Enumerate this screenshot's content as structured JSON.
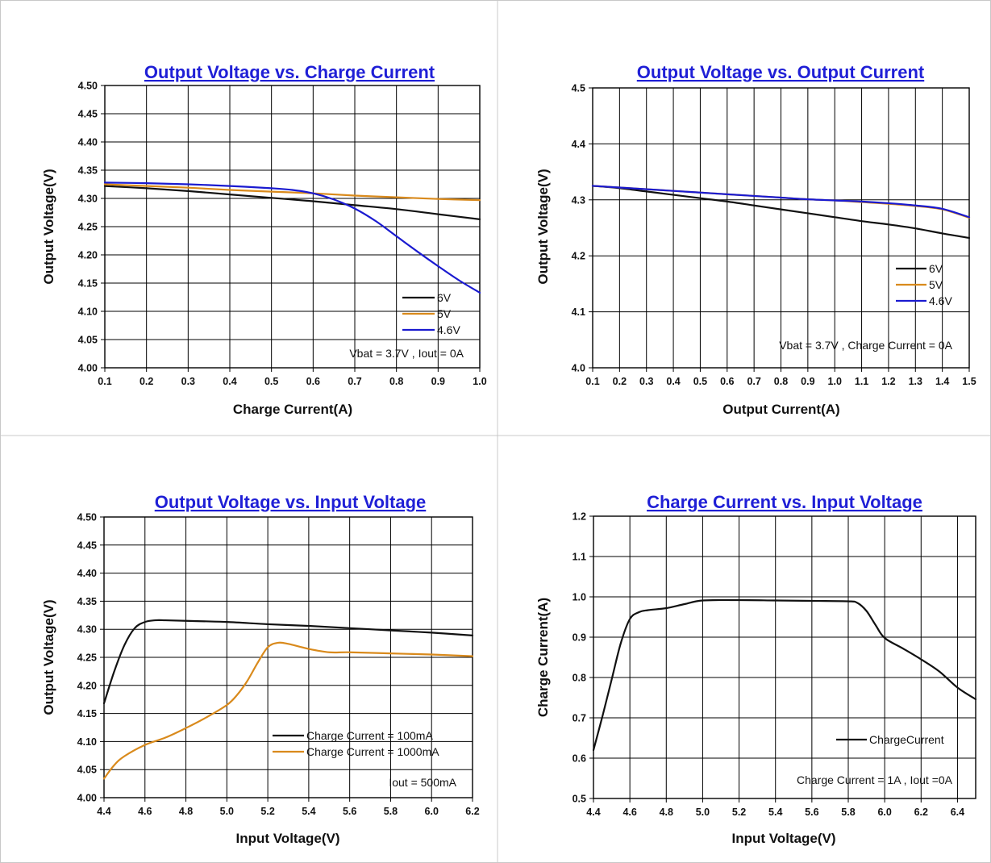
{
  "colors": {
    "title": "#1f1fd6",
    "black_series": "#111111",
    "orange_series": "#d98a1c",
    "blue_series": "#1a1ad0"
  },
  "chart_data": [
    {
      "type": "line",
      "title": "Output Voltage vs. Charge Current",
      "xlabel": "Charge Current(A)",
      "ylabel": "Output Voltage(V)",
      "xlim": [
        0.1,
        1.0
      ],
      "ylim": [
        4.0,
        4.5
      ],
      "xticks": [
        0.1,
        0.2,
        0.3,
        0.4,
        0.5,
        0.6,
        0.7,
        0.8,
        0.9,
        1.0
      ],
      "xtick_labels": [
        "0.1",
        "0.2",
        "0.3",
        "0.4",
        "0.5",
        "0.6",
        "0.7",
        "0.8",
        "0.9",
        "1.0"
      ],
      "yticks": [
        4.0,
        4.05,
        4.1,
        4.15,
        4.2,
        4.25,
        4.3,
        4.35,
        4.4,
        4.45,
        4.5
      ],
      "ytick_labels": [
        "4.00",
        "4.05",
        "4.10",
        "4.15",
        "4.20",
        "4.25",
        "4.30",
        "4.35",
        "4.40",
        "4.45",
        "4.50"
      ],
      "grid": true,
      "legend_position": "bottom-right",
      "annotation": "Vbat = 3.7V , Iout = 0A",
      "series": [
        {
          "name": "6V",
          "color": "#111111",
          "x": [
            0.1,
            0.2,
            0.3,
            0.4,
            0.5,
            0.6,
            0.7,
            0.8,
            0.9,
            1.0
          ],
          "y": [
            4.322,
            4.318,
            4.313,
            4.307,
            4.301,
            4.295,
            4.288,
            4.281,
            4.272,
            4.263
          ]
        },
        {
          "name": "5V",
          "color": "#d98a1c",
          "x": [
            0.1,
            0.2,
            0.3,
            0.4,
            0.5,
            0.6,
            0.7,
            0.8,
            0.9,
            1.0
          ],
          "y": [
            4.325,
            4.322,
            4.319,
            4.315,
            4.312,
            4.309,
            4.305,
            4.302,
            4.299,
            4.297
          ]
        },
        {
          "name": "4.6V",
          "color": "#1a1ad0",
          "x": [
            0.1,
            0.2,
            0.3,
            0.4,
            0.5,
            0.55,
            0.6,
            0.65,
            0.7,
            0.75,
            0.8,
            0.85,
            0.9,
            0.95,
            1.0
          ],
          "y": [
            4.328,
            4.327,
            4.325,
            4.322,
            4.318,
            4.315,
            4.309,
            4.298,
            4.282,
            4.26,
            4.233,
            4.206,
            4.18,
            4.155,
            4.133
          ]
        }
      ]
    },
    {
      "type": "line",
      "title": "Output Voltage vs. Output Current",
      "xlabel": "Output Current(A)",
      "ylabel": "Output Voltage(V)",
      "xlim": [
        0.1,
        1.5
      ],
      "ylim": [
        4.0,
        4.5
      ],
      "xticks": [
        0.1,
        0.2,
        0.3,
        0.4,
        0.5,
        0.6,
        0.7,
        0.8,
        0.9,
        1.0,
        1.1,
        1.2,
        1.3,
        1.4,
        1.5
      ],
      "xtick_labels": [
        "0.1",
        "0.2",
        "0.3",
        "0.4",
        "0.5",
        "0.6",
        "0.7",
        "0.8",
        "0.9",
        "1.0",
        "1.1",
        "1.2",
        "1.3",
        "1.4",
        "1.5"
      ],
      "yticks": [
        4.0,
        4.1,
        4.2,
        4.3,
        4.4,
        4.5
      ],
      "ytick_labels": [
        "4.0",
        "4.1",
        "4.2",
        "4.3",
        "4.4",
        "4.5"
      ],
      "grid": true,
      "legend_position": "right",
      "annotation": "Vbat = 3.7V , Charge Current = 0A",
      "series": [
        {
          "name": "6V",
          "color": "#111111",
          "x": [
            0.1,
            0.2,
            0.3,
            0.4,
            0.5,
            0.6,
            0.7,
            0.8,
            0.9,
            1.0,
            1.1,
            1.2,
            1.3,
            1.4,
            1.5
          ],
          "y": [
            4.325,
            4.321,
            4.315,
            4.309,
            4.303,
            4.297,
            4.29,
            4.283,
            4.276,
            4.269,
            4.262,
            4.256,
            4.249,
            4.24,
            4.232
          ]
        },
        {
          "name": "5V",
          "color": "#d98a1c",
          "x": [
            0.1,
            0.2,
            0.3,
            0.4,
            0.5,
            0.6,
            0.7,
            0.8,
            0.9,
            1.0,
            1.1,
            1.2,
            1.3,
            1.4,
            1.5
          ],
          "y": [
            4.325,
            4.322,
            4.319,
            4.316,
            4.313,
            4.31,
            4.307,
            4.304,
            4.301,
            4.299,
            4.296,
            4.293,
            4.289,
            4.283,
            4.268
          ]
        },
        {
          "name": "4.6V",
          "color": "#1a1ad0",
          "x": [
            0.1,
            0.2,
            0.3,
            0.4,
            0.5,
            0.6,
            0.7,
            0.8,
            0.9,
            1.0,
            1.1,
            1.2,
            1.3,
            1.4,
            1.5
          ],
          "y": [
            4.325,
            4.322,
            4.319,
            4.316,
            4.313,
            4.31,
            4.307,
            4.304,
            4.301,
            4.299,
            4.297,
            4.294,
            4.29,
            4.284,
            4.269
          ]
        }
      ]
    },
    {
      "type": "line",
      "title": "Output Voltage vs. Input Voltage",
      "xlabel": "Input Voltage(V)",
      "ylabel": "Output Voltage(V)",
      "xlim": [
        4.4,
        6.2
      ],
      "ylim": [
        4.0,
        4.5
      ],
      "xticks": [
        4.4,
        4.6,
        4.8,
        5.0,
        5.2,
        5.4,
        5.6,
        5.8,
        6.0,
        6.2
      ],
      "xtick_labels": [
        "4.4",
        "4.6",
        "4.8",
        "5.0",
        "5.2",
        "5.4",
        "5.6",
        "5.8",
        "6.0",
        "6.2"
      ],
      "yticks": [
        4.0,
        4.05,
        4.1,
        4.15,
        4.2,
        4.25,
        4.3,
        4.35,
        4.4,
        4.45,
        4.5
      ],
      "ytick_labels": [
        "4.00",
        "4.05",
        "4.10",
        "4.15",
        "4.20",
        "4.25",
        "4.30",
        "4.35",
        "4.40",
        "4.45",
        "4.50"
      ],
      "grid": true,
      "legend_position": "bottom-right",
      "annotation": "Iout = 500mA",
      "series": [
        {
          "name": "Charge Current = 100mA",
          "color": "#111111",
          "x": [
            4.4,
            4.45,
            4.5,
            4.55,
            4.6,
            4.65,
            4.7,
            4.8,
            5.0,
            5.2,
            5.4,
            5.6,
            5.8,
            6.0,
            6.2
          ],
          "y": [
            4.168,
            4.225,
            4.272,
            4.302,
            4.313,
            4.316,
            4.316,
            4.315,
            4.313,
            4.309,
            4.306,
            4.302,
            4.298,
            4.294,
            4.289
          ]
        },
        {
          "name": "Charge Current = 1000mA",
          "color": "#d98a1c",
          "x": [
            4.4,
            4.45,
            4.5,
            4.6,
            4.7,
            4.8,
            4.9,
            5.0,
            5.05,
            5.1,
            5.15,
            5.2,
            5.25,
            5.3,
            5.4,
            5.5,
            5.6,
            5.8,
            6.0,
            6.2
          ],
          "y": [
            4.034,
            4.058,
            4.074,
            4.094,
            4.107,
            4.124,
            4.143,
            4.165,
            4.183,
            4.208,
            4.24,
            4.268,
            4.276,
            4.274,
            4.265,
            4.259,
            4.259,
            4.257,
            4.255,
            4.252
          ]
        }
      ]
    },
    {
      "type": "line",
      "title": "Charge Current vs. Input Voltage",
      "xlabel": "Input Voltage(V)",
      "ylabel": "Charge Current(A)",
      "xlim": [
        4.4,
        6.5
      ],
      "ylim": [
        0.5,
        1.2
      ],
      "xticks": [
        4.4,
        4.6,
        4.8,
        5.0,
        5.2,
        5.4,
        5.6,
        5.8,
        6.0,
        6.2,
        6.4
      ],
      "xtick_labels": [
        "4.4",
        "4.6",
        "4.8",
        "5.0",
        "5.2",
        "5.4",
        "5.6",
        "5.8",
        "6.0",
        "6.2",
        "6.4"
      ],
      "yticks": [
        0.5,
        0.6,
        0.7,
        0.8,
        0.9,
        1.0,
        1.1,
        1.2
      ],
      "ytick_labels": [
        "0.5",
        "0.6",
        "0.7",
        "0.8",
        "0.9",
        "1.0",
        "1.1",
        "1.2"
      ],
      "grid": true,
      "legend_position": "bottom-right",
      "annotation": "Charge Current = 1A , Iout =0A",
      "series": [
        {
          "name": "ChargeCurrent",
          "color": "#111111",
          "x": [
            4.4,
            4.45,
            4.5,
            4.55,
            4.6,
            4.65,
            4.7,
            4.8,
            4.9,
            5.0,
            5.2,
            5.4,
            5.6,
            5.8,
            5.85,
            5.9,
            5.95,
            6.0,
            6.1,
            6.2,
            6.3,
            6.4,
            6.5
          ],
          "y": [
            0.62,
            0.705,
            0.795,
            0.885,
            0.945,
            0.962,
            0.967,
            0.972,
            0.982,
            0.991,
            0.992,
            0.991,
            0.99,
            0.989,
            0.985,
            0.965,
            0.93,
            0.898,
            0.872,
            0.845,
            0.815,
            0.775,
            0.746
          ]
        }
      ]
    }
  ]
}
